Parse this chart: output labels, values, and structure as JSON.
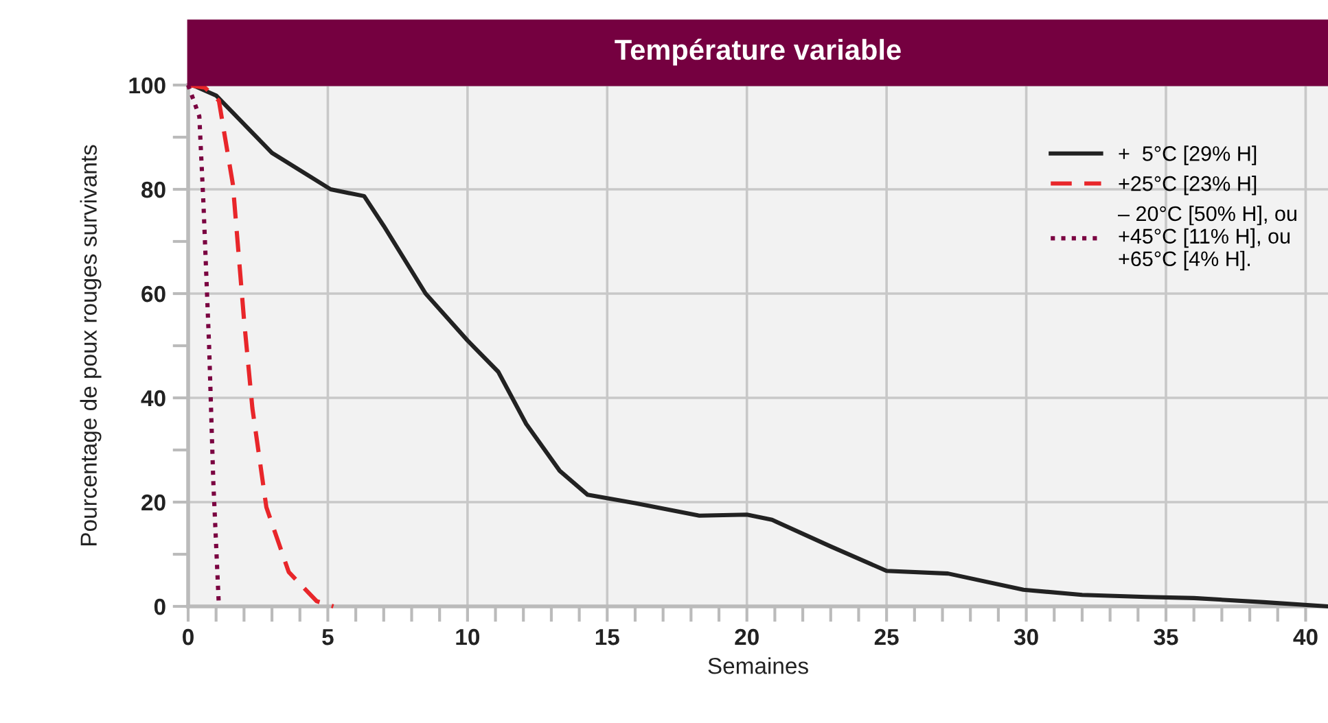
{
  "chart_data": {
    "type": "line",
    "title": "Température variable",
    "xlabel": "Semaines",
    "ylabel": "Pourcentage de poux rouges survivants",
    "xlim": [
      0,
      40.8
    ],
    "ylim": [
      0,
      100
    ],
    "xticks": [
      0,
      5,
      10,
      15,
      20,
      25,
      30,
      35,
      40
    ],
    "yticks": [
      0,
      20,
      40,
      60,
      80,
      100
    ],
    "grid": true,
    "legend": "top right",
    "marker": "none",
    "series": [
      {
        "name": "+  5°C [29% H]",
        "color": "#222222",
        "line_style": "solid",
        "x": [
          0.15,
          1.0,
          3.0,
          5.1,
          6.3,
          7.0,
          8.5,
          10,
          11.1,
          12.1,
          13.3,
          14.3,
          16,
          18.3,
          20.0,
          20.9,
          23,
          25,
          27.2,
          29.9,
          32,
          34.3,
          36,
          38.5,
          40.8
        ],
        "values": [
          100,
          98,
          87,
          80,
          78.7,
          73,
          60,
          51,
          45,
          35,
          26,
          21.4,
          19.8,
          17.4,
          17.6,
          16.6,
          11.5,
          6.8,
          6.3,
          3.2,
          2.2,
          1.8,
          1.6,
          0.8,
          0
        ]
      },
      {
        "name": "+25°C [23% H]",
        "color": "#e8262a",
        "line_style": "dashed",
        "x": [
          0,
          0.6,
          1.1,
          1.6,
          2.0,
          2.3,
          2.8,
          3.6,
          4.6,
          5.2
        ],
        "values": [
          100,
          99.5,
          97,
          81,
          55,
          38,
          19,
          6.6,
          1,
          0
        ]
      },
      {
        "name": "– 20°C [50% H], ou\n+45°C [11% H], ou\n+65°C [4% H].",
        "color": "#7a0040",
        "line_style": "dotted",
        "x": [
          0,
          0.4,
          0.55,
          0.75,
          0.9,
          1.1
        ],
        "values": [
          100,
          94,
          77,
          50,
          24,
          0
        ]
      }
    ]
  }
}
